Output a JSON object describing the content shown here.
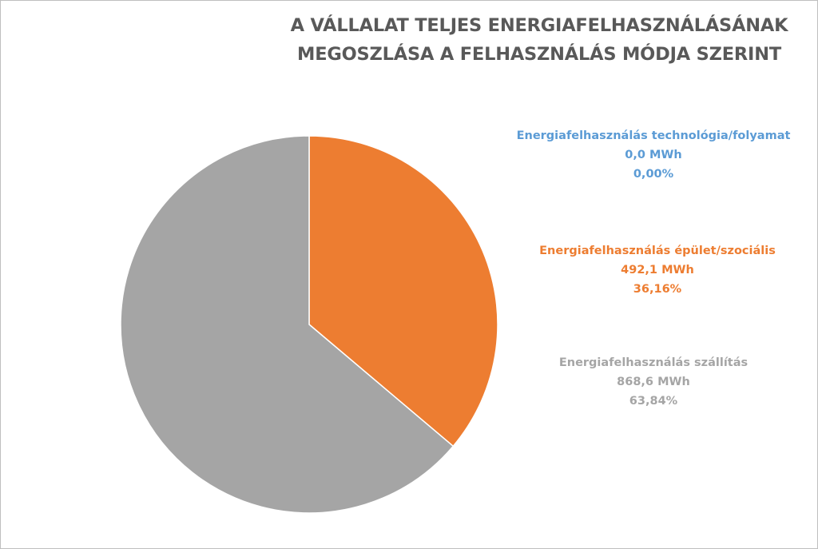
{
  "chart_data": {
    "type": "pie",
    "title_lines": [
      "A VÁLLALAT TELJES ENERGIAFELHASZNÁLÁSÁNAK",
      "MEGOSZLÁSA A FELHASZNÁLÁS MÓDJA SZERINT"
    ],
    "slices": [
      {
        "name": "Energiafelhasználás technológia/folyamat",
        "value": 0.0,
        "value_label": "0,0 MWh",
        "percent": 0.0,
        "percent_label": "0,00%",
        "color": "#5b9bd5"
      },
      {
        "name": "Energiafelhasználás épület/szociális",
        "value": 492.1,
        "value_label": "492,1 MWh",
        "percent": 36.16,
        "percent_label": "36,16%",
        "color": "#ed7d31"
      },
      {
        "name": "Energiafelhasználás szállítás",
        "value": 868.6,
        "value_label": "868,6 MWh",
        "percent": 63.84,
        "percent_label": "63,84%",
        "color": "#a5a5a5"
      }
    ],
    "start_angle": "12 o'clock",
    "direction": "clockwise",
    "legend": "none",
    "label_text_colors": [
      "#5b9bd5",
      "#ed7d31",
      "#a5a5a5"
    ]
  }
}
